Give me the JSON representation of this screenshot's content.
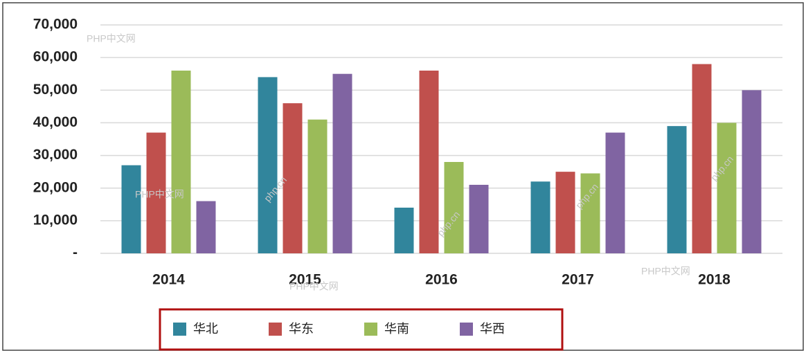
{
  "chart_data": {
    "type": "bar",
    "categories": [
      "2014",
      "2015",
      "2016",
      "2017",
      "2018"
    ],
    "series": [
      {
        "name": "华北",
        "color": "#31859c",
        "values": [
          27000,
          54000,
          14000,
          22000,
          39000
        ]
      },
      {
        "name": "华东",
        "color": "#c0504d",
        "values": [
          37000,
          46000,
          56000,
          25000,
          58000
        ]
      },
      {
        "name": "华南",
        "color": "#9bbb59",
        "values": [
          56000,
          41000,
          28000,
          24500,
          40000
        ]
      },
      {
        "name": "华西",
        "color": "#8064a2",
        "values": [
          16000,
          55000,
          21000,
          37000,
          50000
        ]
      }
    ],
    "ylim": [
      0,
      70000
    ],
    "yticks": [
      {
        "value": 0,
        "label": "-"
      },
      {
        "value": 10000,
        "label": "10,000"
      },
      {
        "value": 20000,
        "label": "20,000"
      },
      {
        "value": 30000,
        "label": "30,000"
      },
      {
        "value": 40000,
        "label": "40,000"
      },
      {
        "value": 50000,
        "label": "50,000"
      },
      {
        "value": 60000,
        "label": "60,000"
      },
      {
        "value": 70000,
        "label": "70,000"
      }
    ],
    "grid": true,
    "legend": "bottom",
    "watermarks": [
      "PHP中文网",
      "PHP中文网",
      "PHP中文网",
      "PHP中文网",
      "php.cn",
      "php.cn",
      "php.cn",
      "php.cn"
    ]
  }
}
